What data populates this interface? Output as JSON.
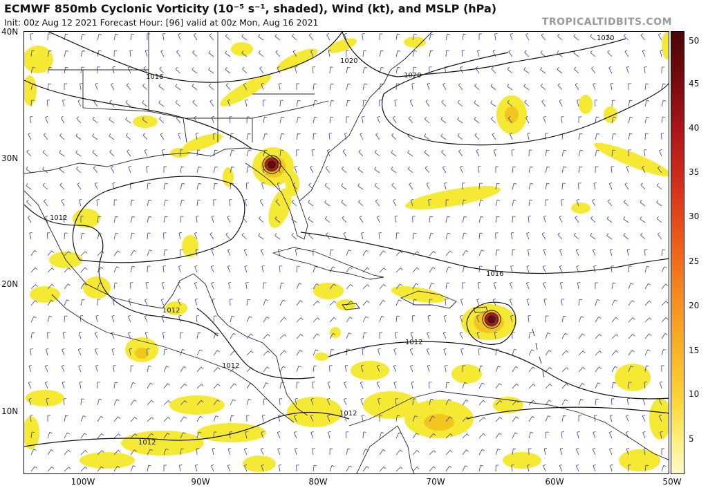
{
  "header": {
    "title": "ECMWF 850mb Cyclonic Vorticity (10⁻⁵ s⁻¹, shaded), Wind (kt), and MSLP (hPa)",
    "subtitle": "Init: 00z Aug 12 2021   Forecast Hour: [96]   valid at 00z Mon, Aug 16 2021",
    "watermark": "TROPICALTIDBITS.COM"
  },
  "axes": {
    "lat_labels": [
      "40N",
      "30N",
      "20N",
      "10N"
    ],
    "lon_labels": [
      "100W",
      "90W",
      "80W",
      "70W",
      "60W",
      "50W"
    ]
  },
  "colorbar": {
    "labels": [
      "50",
      "45",
      "40",
      "35",
      "30",
      "25",
      "20",
      "15",
      "10",
      "5"
    ],
    "colors": [
      "#fdf9c9",
      "#fcd73a",
      "#f58d1e",
      "#d8331a",
      "#7c0b0e"
    ]
  },
  "isobar_labels": [
    "1020",
    "1020",
    "1020",
    "1016",
    "1012",
    "1016",
    "1012",
    "1012",
    "1012",
    "1012",
    "1012"
  ],
  "style": {
    "shade_color": "#f5e82a",
    "shade_strong": "#f2c61f",
    "storm_color": "#8b1208",
    "isobar_color": "#111111",
    "wind_barb_color": "#303c9a",
    "coast_color": "#222222"
  }
}
